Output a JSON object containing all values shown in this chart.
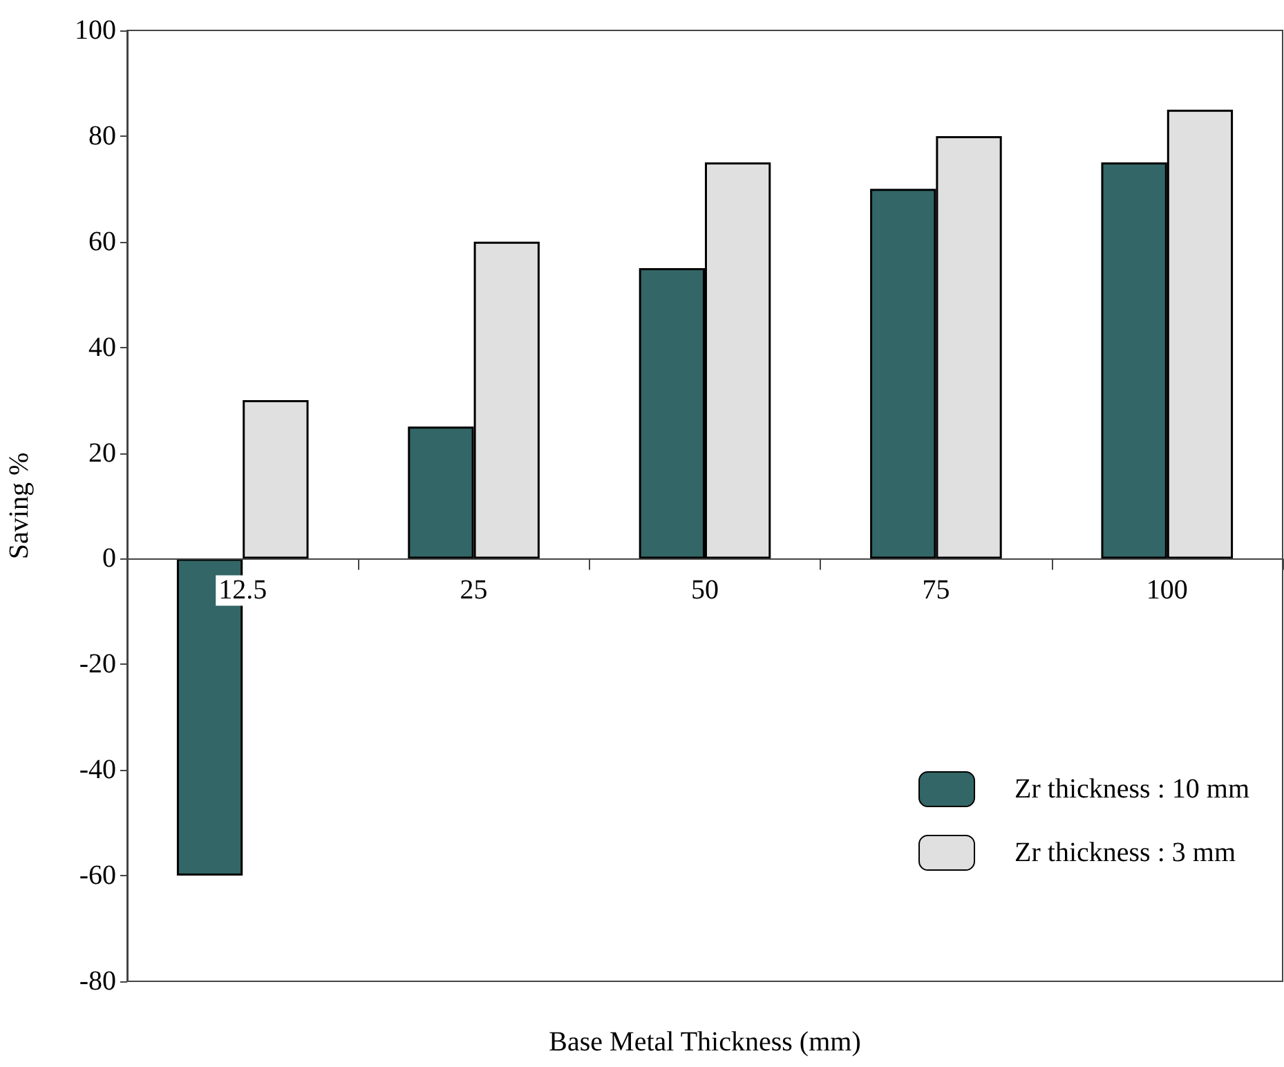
{
  "chart_data": {
    "type": "bar",
    "xlabel": "Base Metal Thickness (mm)",
    "ylabel": "Saving %",
    "categories": [
      "12.5",
      "25",
      "50",
      "75",
      "100"
    ],
    "series": [
      {
        "name": "Zr thickness : 10 mm",
        "color": "#336666",
        "values": [
          -60,
          25,
          55,
          70,
          75
        ]
      },
      {
        "name": "Zr thickness : 3 mm",
        "color": "#e0e0e0",
        "values": [
          30,
          60,
          75,
          80,
          85
        ]
      }
    ],
    "ylim": [
      -80,
      100
    ],
    "yticks": [
      -80,
      -60,
      -40,
      -20,
      0,
      20,
      40,
      60,
      80,
      100
    ],
    "grid": false,
    "legend": "bottom right"
  }
}
